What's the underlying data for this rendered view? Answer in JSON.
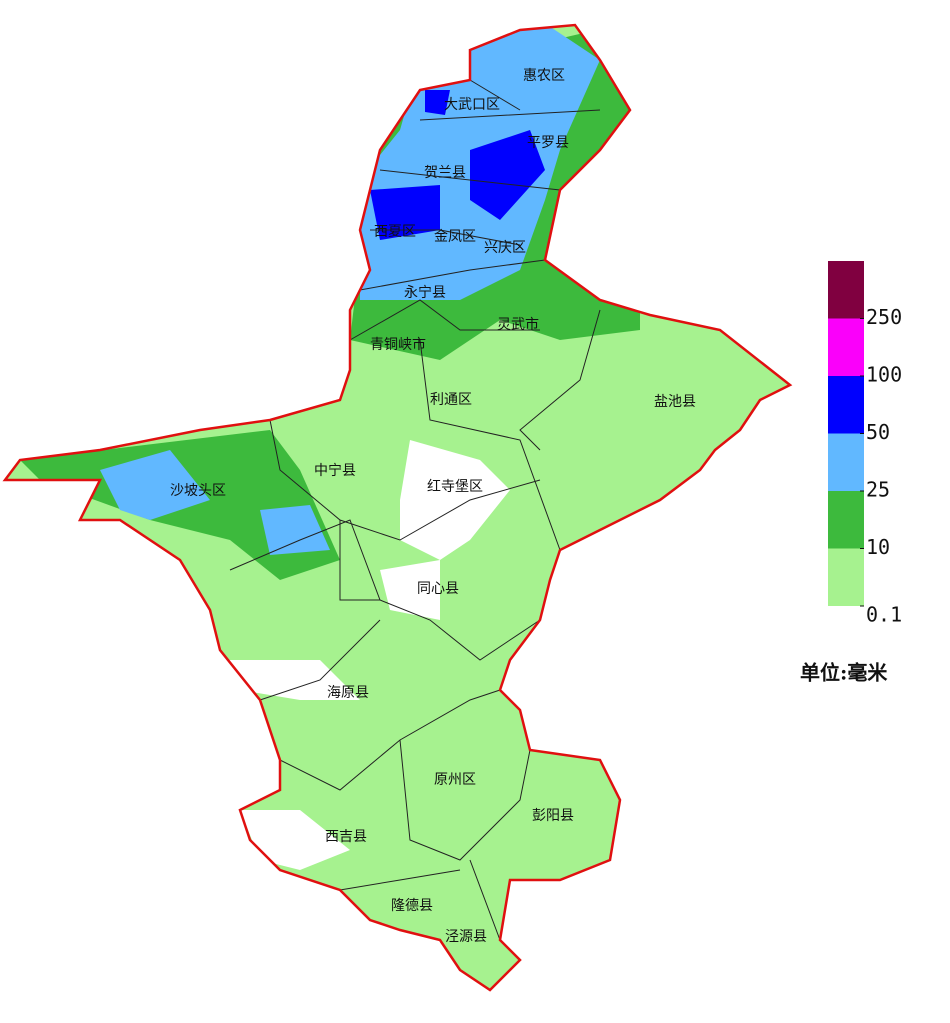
{
  "map": {
    "regions": [
      "惠农区",
      "大武口区",
      "平罗县",
      "贺兰县",
      "西夏区",
      "金凤区",
      "兴庆区",
      "永宁县",
      "灵武市",
      "青铜峡市",
      "利通区",
      "盐池县",
      "沙坡头区",
      "中宁县",
      "红寺堡区",
      "同心县",
      "海原县",
      "原州区",
      "彭阳县",
      "西吉县",
      "隆德县",
      "泾源县"
    ],
    "legend": {
      "ticks": [
        0.1,
        10,
        25,
        50,
        100,
        250
      ],
      "colors": [
        "#a6f28f",
        "#3dba3d",
        "#61b8ff",
        "#0000fe",
        "#fa00fa",
        "#800040"
      ],
      "unit": "单位:毫米"
    }
  }
}
